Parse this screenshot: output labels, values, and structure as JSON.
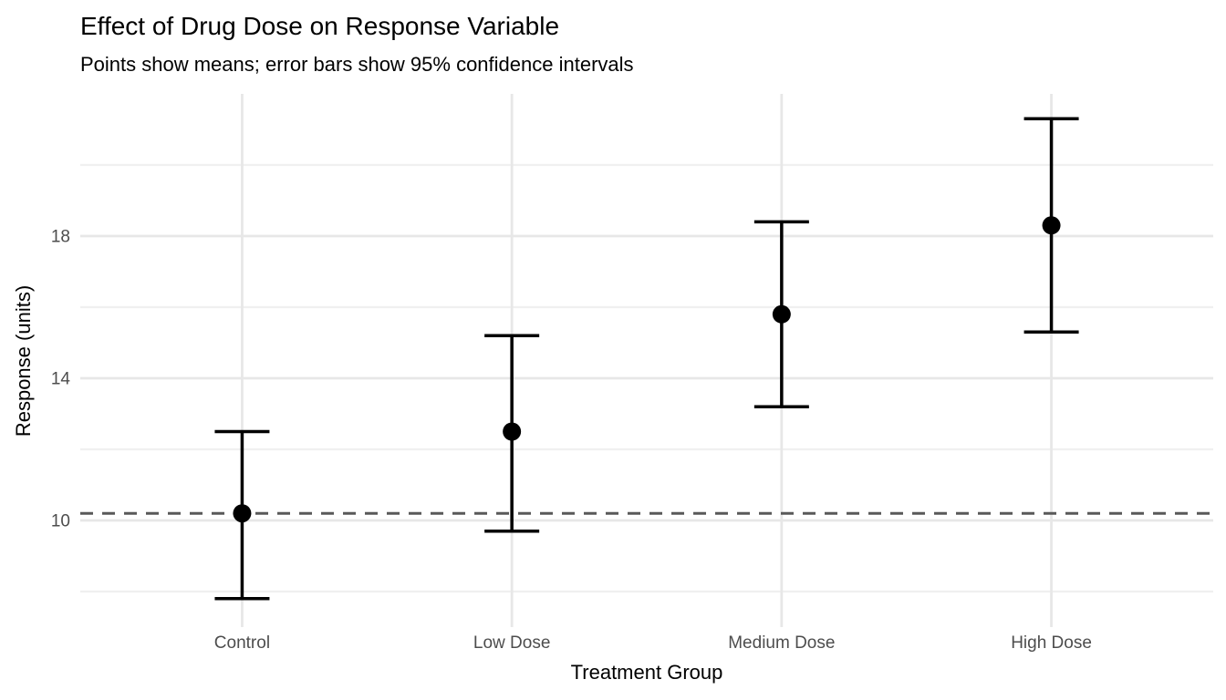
{
  "chart_data": {
    "type": "scatter",
    "title": "Effect of Drug Dose on Response Variable",
    "subtitle": "Points show means; error bars show 95% confidence intervals",
    "xlabel": "Treatment Group",
    "ylabel": "Response (units)",
    "categories": [
      "Control",
      "Low Dose",
      "Medium Dose",
      "High Dose"
    ],
    "series": [
      {
        "name": "mean",
        "values": [
          10.2,
          12.5,
          15.8,
          18.3
        ]
      },
      {
        "name": "ci_lower",
        "values": [
          7.8,
          9.7,
          13.2,
          15.3
        ]
      },
      {
        "name": "ci_upper",
        "values": [
          12.5,
          15.2,
          18.4,
          21.3
        ]
      }
    ],
    "reference_line": {
      "y": 10.2,
      "style": "dashed"
    },
    "ylim": [
      7.0,
      22.0
    ],
    "yticks": [
      10,
      14,
      18
    ],
    "yticks_minor": [
      8,
      12,
      16,
      20
    ],
    "grid": "major and minor horizontal, vertical at categories",
    "legend": "none",
    "colors": {
      "point": "#000000",
      "errorbar": "#000000",
      "reference_line": "#595959",
      "grid_major": "#E7E7E7",
      "grid_minor": "#F0F0F0",
      "axis_text": "#4D4D4D",
      "title_text": "#000000",
      "background": "#FFFFFF"
    }
  }
}
